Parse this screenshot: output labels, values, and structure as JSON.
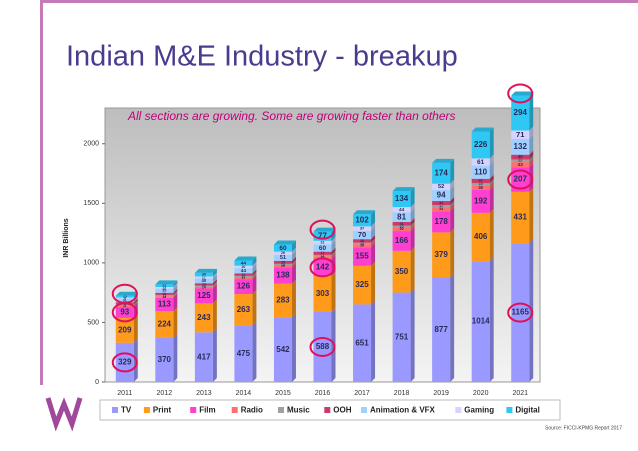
{
  "chart_data": {
    "type": "stacked_bar",
    "title": "Indian M&E Industry - breakup",
    "annotation": "All sections are growing. Some are growing faster than others",
    "y_label": "INR Billions",
    "source": "Source: FICCI-KPMG Report 2017",
    "categories": [
      "2011",
      "2012",
      "2013",
      "2014",
      "2015",
      "2016",
      "2017",
      "2018",
      "2019",
      "2020",
      "2021"
    ],
    "ylim": [
      0,
      2300
    ],
    "yticks": [
      0,
      500,
      1000,
      1500,
      2000
    ],
    "grid": false,
    "legend": "bottom",
    "series": [
      {
        "name": "TV",
        "color": "#9999ff",
        "values": [
          329,
          370,
          417,
          475,
          542,
          588,
          651,
          751,
          877,
          1014,
          1165
        ]
      },
      {
        "name": "Print",
        "color": "#ff9a1a",
        "values": [
          209,
          224,
          243,
          263,
          283,
          303,
          325,
          350,
          379,
          406,
          431
        ]
      },
      {
        "name": "Film",
        "color": "#ff3fcf",
        "values": [
          93,
          113,
          125,
          126,
          138,
          142,
          155,
          166,
          178,
          192,
          207
        ]
      },
      {
        "name": "Radio",
        "color": "#ff6f6f",
        "values": [
          11,
          13,
          14,
          17,
          19,
          23,
          26,
          30,
          34,
          38,
          43
        ]
      },
      {
        "name": "Music",
        "color": "#a0a0a0",
        "values": [
          9,
          11,
          10,
          10,
          10,
          11,
          13,
          15,
          17,
          19,
          22
        ]
      },
      {
        "name": "OOH",
        "color": "#cc3a6a",
        "values": [
          18,
          18,
          20,
          21,
          25,
          27,
          29,
          31,
          34,
          37,
          40
        ]
      },
      {
        "name": "Animation & VFX",
        "color": "#9fd0ff",
        "values": [
          31,
          35,
          40,
          44,
          51,
          60,
          70,
          81,
          94,
          110,
          132
        ]
      },
      {
        "name": "Gaming",
        "color": "#d4d4ff",
        "values": [
          9,
          13,
          17,
          20,
          26,
          31,
          37,
          44,
          52,
          61,
          71
        ]
      },
      {
        "name": "Digital",
        "color": "#2fc8f5",
        "values": [
          15,
          22,
          30,
          44,
          60,
          77,
          102,
          134,
          174,
          226,
          294
        ]
      }
    ]
  }
}
